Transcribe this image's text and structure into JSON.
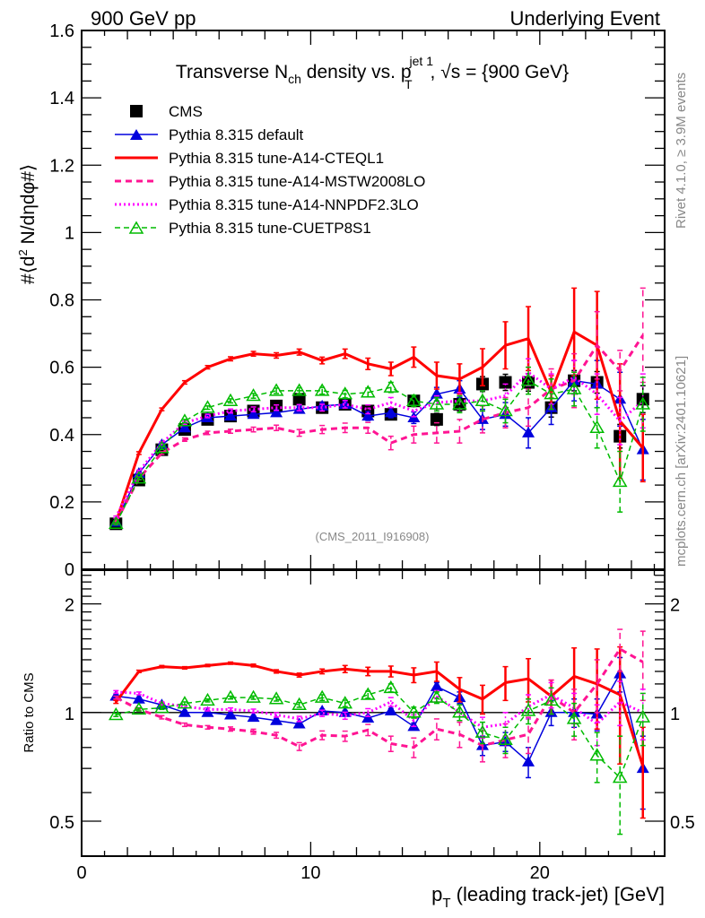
{
  "header": {
    "left": "900 GeV pp",
    "right": "Underlying Event"
  },
  "side_labels": {
    "rivet": "Rivet 4.1.0, ≥ 3.9M events",
    "mcplots": "mcplots.cern.ch [arXiv:2401.10621]"
  },
  "analysis_id": "(CMS_2011_I916908)",
  "chart_data": [
    {
      "type": "line",
      "panel": "main",
      "title": "Transverse N_ch density vs. p_T^jet 1, √s = {900 GeV}",
      "title_parts": {
        "pre": "Transverse N",
        "sub1": "ch",
        "mid": " density vs. p",
        "sup": "jet 1",
        "sub2": "T",
        "post": ", √s = {900 GeV}"
      },
      "ylabel": "#⟨d² N/dηdφ#⟩",
      "ylabel_parts": {
        "pre": "#⟨d",
        "sup": "2",
        "post": " N/dηdφ#⟩"
      },
      "xlabel": "",
      "xlim": [
        0,
        25.45
      ],
      "ylim": [
        0,
        1.6
      ],
      "y_ticks": [
        "0",
        "0.2",
        "0.4",
        "0.6",
        "0.8",
        "1",
        "1.2",
        "1.4",
        "1.6"
      ],
      "y_tick_values": [
        0,
        0.2,
        0.4,
        0.6,
        0.8,
        1.0,
        1.2,
        1.4,
        1.6
      ],
      "grid": false,
      "legend_placement": "top-left",
      "x": [
        1.5,
        2.5,
        3.5,
        4.5,
        5.5,
        6.5,
        7.5,
        8.5,
        9.5,
        10.5,
        11.5,
        12.5,
        13.5,
        14.5,
        15.5,
        16.5,
        17.5,
        18.5,
        19.5,
        20.5,
        21.5,
        22.5,
        23.5,
        24.5
      ],
      "series": [
        {
          "name": "CMS",
          "color": "#000000",
          "style": "data",
          "marker": "square",
          "values": [
            0.135,
            0.265,
            0.355,
            0.415,
            0.445,
            0.455,
            0.47,
            0.485,
            0.505,
            0.48,
            0.49,
            0.47,
            0.46,
            0.5,
            0.445,
            0.49,
            0.55,
            0.555,
            0.555,
            0.48,
            0.56,
            0.555,
            0.395,
            0.505
          ],
          "errors": [
            0.005,
            0.005,
            0.005,
            0.006,
            0.006,
            0.007,
            0.008,
            0.009,
            0.01,
            0.01,
            0.012,
            0.013,
            0.015,
            0.016,
            0.018,
            0.02,
            0.022,
            0.024,
            0.026,
            0.028,
            0.03,
            0.032,
            0.035,
            0.04
          ]
        },
        {
          "name": "Pythia 8.315 default",
          "color": "#0000dd",
          "style": "solid-thin",
          "marker": "triangle-filled",
          "values": [
            0.14,
            0.285,
            0.37,
            0.42,
            0.45,
            0.455,
            0.46,
            0.465,
            0.475,
            0.485,
            0.49,
            0.455,
            0.465,
            0.45,
            0.52,
            0.535,
            0.445,
            0.46,
            0.405,
            0.48,
            0.56,
            0.55,
            0.505,
            0.355
          ],
          "errors": [
            0.003,
            0.004,
            0.005,
            0.005,
            0.006,
            0.006,
            0.007,
            0.008,
            0.009,
            0.01,
            0.011,
            0.013,
            0.015,
            0.017,
            0.02,
            0.025,
            0.03,
            0.035,
            0.045,
            0.05,
            0.06,
            0.07,
            0.08,
            0.09
          ]
        },
        {
          "name": "Pythia 8.315 tune-A14-CTEQL1",
          "color": "#ff0000",
          "style": "solid-thick",
          "marker": "none",
          "values": [
            0.14,
            0.345,
            0.475,
            0.555,
            0.6,
            0.625,
            0.64,
            0.635,
            0.645,
            0.62,
            0.64,
            0.61,
            0.595,
            0.63,
            0.575,
            0.565,
            0.6,
            0.665,
            0.685,
            0.525,
            0.705,
            0.665,
            0.44,
            0.36
          ],
          "errors": [
            0.003,
            0.004,
            0.004,
            0.005,
            0.005,
            0.006,
            0.007,
            0.008,
            0.009,
            0.01,
            0.014,
            0.017,
            0.02,
            0.03,
            0.04,
            0.045,
            0.055,
            0.07,
            0.095,
            0.05,
            0.13,
            0.16,
            0.17,
            0.1
          ]
        },
        {
          "name": "Pythia 8.315 tune-A14-MSTW2008LO",
          "color": "#ff1493",
          "style": "dashed",
          "marker": "none",
          "values": [
            0.14,
            0.27,
            0.345,
            0.385,
            0.405,
            0.41,
            0.415,
            0.42,
            0.405,
            0.415,
            0.42,
            0.42,
            0.375,
            0.4,
            0.405,
            0.41,
            0.445,
            0.465,
            0.48,
            0.535,
            0.56,
            0.665,
            0.59,
            0.695
          ],
          "errors": [
            0.003,
            0.004,
            0.004,
            0.005,
            0.005,
            0.006,
            0.007,
            0.008,
            0.01,
            0.012,
            0.014,
            0.016,
            0.02,
            0.025,
            0.03,
            0.035,
            0.04,
            0.045,
            0.055,
            0.06,
            0.08,
            0.1,
            0.06,
            0.14
          ]
        },
        {
          "name": "Pythia 8.315 tune-A14-NNPDF2.3LO",
          "color": "#ff00ff",
          "style": "dotted",
          "marker": "none",
          "values": [
            0.155,
            0.29,
            0.375,
            0.435,
            0.455,
            0.47,
            0.475,
            0.48,
            0.48,
            0.48,
            0.49,
            0.475,
            0.495,
            0.47,
            0.495,
            0.5,
            0.5,
            0.515,
            0.585,
            0.535,
            0.57,
            0.52,
            0.44,
            0.5
          ],
          "errors": [
            0.003,
            0.004,
            0.004,
            0.005,
            0.005,
            0.006,
            0.007,
            0.008,
            0.009,
            0.01,
            0.011,
            0.013,
            0.015,
            0.017,
            0.02,
            0.025,
            0.03,
            0.035,
            0.04,
            0.045,
            0.05,
            0.06,
            0.07,
            0.08
          ]
        },
        {
          "name": "Pythia 8.315 tune-CUETP8S1",
          "color": "#00bb00",
          "style": "dashed-thin",
          "marker": "triangle-open",
          "values": [
            0.135,
            0.27,
            0.36,
            0.44,
            0.48,
            0.5,
            0.515,
            0.53,
            0.53,
            0.53,
            0.52,
            0.525,
            0.54,
            0.5,
            0.49,
            0.49,
            0.5,
            0.47,
            0.56,
            0.52,
            0.535,
            0.42,
            0.26,
            0.49
          ],
          "errors": [
            0.003,
            0.004,
            0.004,
            0.005,
            0.005,
            0.006,
            0.007,
            0.008,
            0.009,
            0.01,
            0.011,
            0.013,
            0.015,
            0.017,
            0.02,
            0.025,
            0.03,
            0.035,
            0.04,
            0.045,
            0.05,
            0.06,
            0.09,
            0.08
          ]
        }
      ]
    },
    {
      "type": "line",
      "panel": "ratio",
      "ylabel": "Ratio to CMS",
      "xlabel": "p_T (leading track-jet) [GeV]",
      "xlabel_parts": {
        "pre": "p",
        "sub": "T",
        "post": " (leading track-jet) [GeV]"
      },
      "xlim": [
        0,
        25.45
      ],
      "ylim": [
        0.4,
        2.48
      ],
      "yscale": "log",
      "x_ticks": [
        "0",
        "10",
        "20"
      ],
      "x_tick_values": [
        0,
        10,
        20
      ],
      "y_ticks": [
        "0.5",
        "1",
        "2"
      ],
      "y_tick_values": [
        0.5,
        1,
        2
      ],
      "reference_line": 1,
      "grid": false,
      "x": [
        1.5,
        2.5,
        3.5,
        4.5,
        5.5,
        6.5,
        7.5,
        8.5,
        9.5,
        10.5,
        11.5,
        12.5,
        13.5,
        14.5,
        15.5,
        16.5,
        17.5,
        18.5,
        19.5,
        20.5,
        21.5,
        22.5,
        23.5,
        24.5
      ],
      "series": [
        {
          "name": "Pythia 8.315 default",
          "color": "#0000dd",
          "values": [
            1.11,
            1.09,
            1.05,
            1.0,
            1.0,
            0.985,
            0.97,
            0.95,
            0.93,
            1.01,
            1.0,
            0.965,
            1.01,
            0.915,
            1.18,
            1.1,
            0.81,
            0.83,
            0.73,
            1.0,
            1.0,
            0.99,
            1.28,
            0.7
          ],
          "errors": [
            0.01,
            0.01,
            0.01,
            0.01,
            0.01,
            0.01,
            0.01,
            0.01,
            0.012,
            0.012,
            0.013,
            0.014,
            0.016,
            0.02,
            0.03,
            0.04,
            0.05,
            0.05,
            0.07,
            0.08,
            0.09,
            0.1,
            0.14,
            0.16
          ]
        },
        {
          "name": "Pythia 8.315 tune-A14-CTEQL1",
          "color": "#ff0000",
          "values": [
            1.07,
            1.3,
            1.34,
            1.33,
            1.35,
            1.37,
            1.35,
            1.3,
            1.27,
            1.3,
            1.32,
            1.3,
            1.3,
            1.27,
            1.3,
            1.16,
            1.09,
            1.21,
            1.24,
            1.11,
            1.26,
            1.2,
            1.12,
            0.71
          ],
          "errors": [
            0.01,
            0.01,
            0.01,
            0.01,
            0.01,
            0.01,
            0.012,
            0.014,
            0.016,
            0.02,
            0.03,
            0.035,
            0.045,
            0.06,
            0.08,
            0.09,
            0.1,
            0.13,
            0.17,
            0.12,
            0.25,
            0.3,
            0.4,
            0.2
          ]
        },
        {
          "name": "Pythia 8.315 tune-A14-MSTW2008LO",
          "color": "#ff1493",
          "values": [
            1.1,
            1.02,
            0.97,
            0.925,
            0.91,
            0.9,
            0.885,
            0.865,
            0.805,
            0.865,
            0.86,
            0.895,
            0.82,
            0.8,
            0.9,
            0.87,
            0.81,
            0.84,
            0.87,
            1.11,
            1.0,
            1.2,
            1.5,
            1.38
          ],
          "errors": [
            0.01,
            0.01,
            0.01,
            0.01,
            0.01,
            0.012,
            0.014,
            0.016,
            0.02,
            0.024,
            0.028,
            0.032,
            0.04,
            0.05,
            0.06,
            0.07,
            0.08,
            0.09,
            0.1,
            0.12,
            0.16,
            0.2,
            0.2,
            0.3
          ]
        },
        {
          "name": "Pythia 8.315 tune-A14-NNPDF2.3LO",
          "color": "#ff00ff",
          "values": [
            1.14,
            1.13,
            1.06,
            1.04,
            1.02,
            1.02,
            1.01,
            0.985,
            0.96,
            0.995,
            0.98,
            1.0,
            1.07,
            0.95,
            1.11,
            1.0,
            0.91,
            0.93,
            1.04,
            1.12,
            1.03,
            0.93,
            1.07,
            1.0
          ],
          "errors": [
            0.01,
            0.01,
            0.01,
            0.01,
            0.01,
            0.01,
            0.012,
            0.014,
            0.016,
            0.02,
            0.022,
            0.025,
            0.03,
            0.035,
            0.04,
            0.05,
            0.06,
            0.07,
            0.08,
            0.09,
            0.1,
            0.12,
            0.15,
            0.16
          ]
        },
        {
          "name": "Pythia 8.315 tune-CUETP8S1",
          "color": "#00bb00",
          "values": [
            0.985,
            1.02,
            1.03,
            1.06,
            1.08,
            1.1,
            1.1,
            1.09,
            1.05,
            1.1,
            1.06,
            1.12,
            1.17,
            1.0,
            1.1,
            1.0,
            0.88,
            0.84,
            1.01,
            1.08,
            0.96,
            0.76,
            0.66,
            0.97
          ],
          "errors": [
            0.01,
            0.01,
            0.01,
            0.01,
            0.01,
            0.01,
            0.012,
            0.014,
            0.016,
            0.02,
            0.022,
            0.025,
            0.03,
            0.035,
            0.04,
            0.05,
            0.06,
            0.07,
            0.08,
            0.09,
            0.1,
            0.12,
            0.2,
            0.16
          ]
        }
      ]
    }
  ]
}
